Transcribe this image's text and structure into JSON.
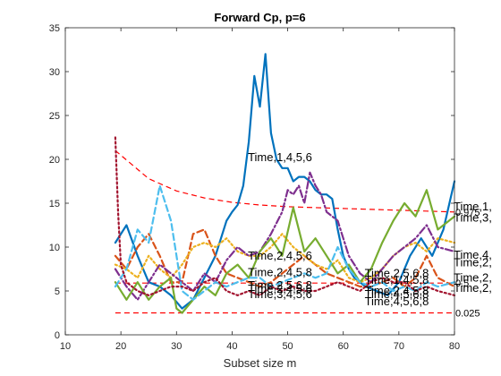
{
  "chart_data": {
    "type": "line",
    "title": "Forward Cp, p=6",
    "xlabel": "Subset size m",
    "ylabel": "",
    "xlim": [
      10,
      80
    ],
    "ylim": [
      0,
      35
    ],
    "xticks": [
      "10",
      "20",
      "30",
      "40",
      "50",
      "60",
      "70",
      "80"
    ],
    "yticks": [
      "0",
      "5",
      "10",
      "15",
      "20",
      "25",
      "30",
      "35"
    ],
    "grid": false,
    "bands": [
      {
        "label": "0.975",
        "color": "#ff0000",
        "x": [
          19,
          25,
          30,
          35,
          40,
          45,
          50,
          55,
          60,
          65,
          70,
          75,
          80
        ],
        "y": [
          21.0,
          17.8,
          16.4,
          15.6,
          15.1,
          14.8,
          14.6,
          14.5,
          14.4,
          14.3,
          14.2,
          14.1,
          14.0
        ]
      },
      {
        "label": "0.5",
        "color": "#ff0000",
        "x": [
          19,
          30,
          40,
          50,
          60,
          70,
          80
        ],
        "y": [
          5.9,
          5.9,
          5.9,
          5.9,
          5.9,
          5.9,
          5.9
        ]
      },
      {
        "label": "0.025",
        "color": "#ff0000",
        "x": [
          19,
          30,
          40,
          50,
          60,
          70,
          80
        ],
        "y": [
          2.5,
          2.5,
          2.5,
          2.5,
          2.5,
          2.5,
          2.5
        ]
      }
    ],
    "series": [
      {
        "color": "#0072bd",
        "style": "solid",
        "x": [
          19,
          21,
          23,
          25,
          27,
          29,
          31,
          33,
          35,
          37,
          39,
          40,
          41,
          42,
          43,
          44,
          45,
          46,
          47,
          48,
          49,
          50,
          51,
          52,
          53,
          54,
          55,
          56,
          57,
          58,
          59,
          60,
          61,
          62,
          63,
          64,
          66,
          68,
          70,
          72,
          74,
          76,
          78,
          80
        ],
        "y": [
          10.5,
          12.5,
          9.0,
          6.0,
          5.5,
          4.5,
          3.0,
          4.0,
          6.5,
          9.0,
          13.0,
          14.0,
          14.8,
          17.0,
          22.0,
          29.5,
          26.0,
          32.0,
          23.0,
          20.0,
          19.0,
          19.0,
          17.5,
          18.0,
          18.0,
          17.5,
          16.5,
          16.0,
          16.0,
          15.5,
          12.0,
          9.0,
          7.5,
          6.5,
          6.0,
          5.5,
          5.0,
          4.5,
          6.0,
          9.0,
          11.0,
          9.0,
          12.0,
          17.5
        ]
      },
      {
        "color": "#d95319",
        "style": "dashed",
        "x": [
          19,
          21,
          23,
          25,
          27,
          29,
          31,
          33,
          35,
          37,
          39,
          41,
          43,
          45,
          47,
          49,
          51,
          53,
          55,
          57,
          59,
          61,
          63,
          65,
          67,
          69,
          71,
          73,
          75,
          77,
          80
        ],
        "y": [
          9.0,
          7.5,
          10.0,
          11.5,
          9.0,
          6.0,
          6.0,
          11.5,
          12.0,
          9.0,
          7.0,
          6.5,
          6.0,
          5.5,
          6.0,
          7.0,
          8.0,
          9.0,
          8.0,
          7.0,
          6.5,
          6.0,
          5.5,
          5.5,
          6.0,
          6.5,
          5.5,
          6.5,
          9.0,
          6.5,
          5.5
        ]
      },
      {
        "color": "#edb120",
        "style": "dotted",
        "x": [
          19,
          21,
          23,
          25,
          27,
          29,
          31,
          33,
          35,
          37,
          39,
          41,
          43,
          45,
          47,
          49,
          51,
          53,
          55,
          57,
          59,
          61,
          63,
          65,
          67,
          69,
          71,
          73,
          75,
          77,
          80
        ],
        "y": [
          8.0,
          7.5,
          6.5,
          9.0,
          7.5,
          6.5,
          8.0,
          10.0,
          10.5,
          10.0,
          11.0,
          9.5,
          9.0,
          9.0,
          10.0,
          11.5,
          10.0,
          9.0,
          8.0,
          7.5,
          8.5,
          6.5,
          6.0,
          6.5,
          7.5,
          9.0,
          10.0,
          10.5,
          9.5,
          11.0,
          10.5
        ]
      },
      {
        "color": "#7e2f8e",
        "style": "dashdot",
        "x": [
          19,
          21,
          23,
          25,
          27,
          29,
          31,
          33,
          35,
          37,
          39,
          41,
          43,
          45,
          47,
          49,
          50,
          51,
          52,
          53,
          54,
          55,
          56,
          57,
          59,
          61,
          63,
          65,
          67,
          69,
          71,
          73,
          75,
          77,
          80
        ],
        "y": [
          7.5,
          5.5,
          4.0,
          6.0,
          8.0,
          7.0,
          6.0,
          5.0,
          7.0,
          6.0,
          8.5,
          10.0,
          9.0,
          9.5,
          11.5,
          14.0,
          16.5,
          16.0,
          17.0,
          15.0,
          18.5,
          17.0,
          16.0,
          14.0,
          13.0,
          9.0,
          7.0,
          6.0,
          7.5,
          9.0,
          10.0,
          11.0,
          12.5,
          10.0,
          9.5
        ]
      },
      {
        "color": "#77ac30",
        "style": "solid",
        "x": [
          19,
          21,
          23,
          25,
          27,
          29,
          30,
          31,
          33,
          35,
          37,
          39,
          41,
          43,
          45,
          47,
          49,
          51,
          53,
          55,
          57,
          59,
          61,
          63,
          65,
          67,
          69,
          71,
          73,
          75,
          77,
          80
        ],
        "y": [
          6.0,
          4.0,
          6.0,
          4.0,
          5.5,
          6.5,
          3.0,
          2.5,
          4.0,
          5.5,
          4.5,
          7.0,
          8.0,
          6.5,
          9.5,
          11.0,
          9.0,
          14.5,
          9.5,
          11.0,
          9.0,
          7.0,
          8.0,
          6.0,
          7.5,
          10.5,
          13.0,
          15.0,
          13.5,
          16.5,
          12.0,
          13.5
        ]
      },
      {
        "color": "#4dbeee",
        "style": "dashed",
        "x": [
          19,
          21,
          23,
          25,
          27,
          29,
          31,
          33,
          35,
          37,
          39,
          41,
          43,
          45,
          47,
          49,
          51,
          53,
          55,
          57,
          59,
          61,
          63,
          65,
          67,
          69,
          71,
          73,
          75,
          77,
          80
        ],
        "y": [
          5.5,
          7.5,
          12.0,
          10.5,
          17.0,
          13.0,
          5.0,
          4.0,
          5.0,
          6.0,
          5.5,
          6.0,
          6.5,
          6.5,
          5.5,
          6.0,
          6.5,
          7.0,
          6.5,
          7.0,
          10.0,
          7.5,
          6.0,
          5.5,
          6.0,
          5.0,
          5.5,
          5.0,
          6.0,
          5.5,
          6.0
        ]
      },
      {
        "color": "#a2142f",
        "style": "dotted",
        "x": [
          19,
          19.5,
          20,
          21,
          23,
          25,
          27,
          29,
          31,
          33,
          35,
          37,
          39,
          41,
          43,
          45,
          47,
          49,
          51,
          53,
          55,
          57,
          59,
          61,
          63,
          65,
          67,
          69,
          71,
          73,
          75,
          77,
          80
        ],
        "y": [
          22.5,
          14.0,
          8.0,
          6.0,
          5.0,
          4.5,
          5.0,
          5.5,
          5.5,
          5.0,
          6.0,
          6.5,
          5.0,
          4.5,
          5.0,
          4.5,
          5.5,
          5.0,
          5.5,
          5.0,
          5.0,
          5.5,
          6.0,
          5.5,
          5.0,
          6.0,
          6.5,
          6.0,
          6.0,
          5.0,
          5.5,
          5.0,
          4.5
        ]
      }
    ],
    "annotations": [
      {
        "text": "Time,1,4,5,6",
        "x": 43,
        "y": 20.2
      },
      {
        "text": "Time,2,4,5,6",
        "x": 43,
        "y": 9.0
      },
      {
        "text": "Time,2,4,5,8",
        "x": 43,
        "y": 7.1
      },
      {
        "text": "Time,2,5,6,8",
        "x": 43,
        "y": 5.6
      },
      {
        "text": "Time,2,4,5,6",
        "x": 43,
        "y": 5.2
      },
      {
        "text": "Time,3,4,5,6",
        "x": 43,
        "y": 4.6
      },
      {
        "text": "Time,2,5,6,8",
        "x": 64,
        "y": 7.0
      },
      {
        "text": "Time,2,4,5,8",
        "x": 64,
        "y": 5.0
      },
      {
        "text": "Time,1,4,5,8",
        "x": 64,
        "y": 6.2
      },
      {
        "text": "Time,4,5,6,8",
        "x": 64,
        "y": 4.6
      },
      {
        "text": "Time,4,5,6,8",
        "x": 64,
        "y": 3.8
      },
      {
        "text": "Time,1,",
        "x": 80,
        "y": 14.6
      },
      {
        "text": "Time,3,",
        "x": 80,
        "y": 13.3
      },
      {
        "text": "Time,4,",
        "x": 80,
        "y": 9.1
      },
      {
        "text": "Time,2,",
        "x": 80,
        "y": 8.2
      },
      {
        "text": "Time,2,",
        "x": 80,
        "y": 6.5
      },
      {
        "text": "Time,2,",
        "x": 80,
        "y": 5.3
      }
    ]
  }
}
